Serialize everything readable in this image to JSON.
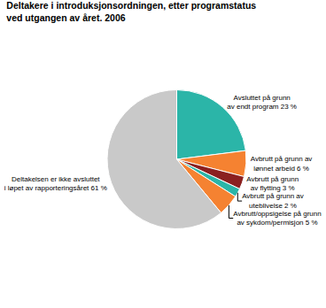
{
  "chart_data": {
    "type": "pie",
    "title": "Deltakere i introduksjonsordningen, etter programstatus\nved utgangen av året. 2006",
    "categories": [
      "Avsluttet på grunn\nav endt program 23 %",
      "Avbrutt på grunn av\nlønnet arbeid 6 %",
      "Avbrutt på grunn\nav flytting 3 %",
      "Avbrutt på grunn av\nuteblivelse 2 %",
      "Avbrutt/oppsigelse på grunn\nav sykdom/permisjon 5 %",
      "Deltakelsen er ikke avsluttet\ni løpet av rapporteringsåret 61 %"
    ],
    "values": [
      23,
      6,
      3,
      2,
      5,
      61
    ],
    "colors": [
      "#2bb5a8",
      "#f58231",
      "#8b2020",
      "#2bb5a8",
      "#f58231",
      "#c9c9c9"
    ]
  }
}
